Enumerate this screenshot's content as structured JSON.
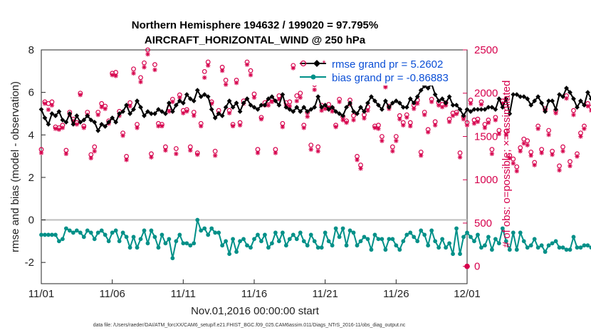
{
  "chart_data": {
    "type": "line",
    "title": "Northern Hemisphere 194632 / 199020 = 97.795%",
    "subtitle": "AIRCRAFT_HORIZONTAL_WIND @ 250 hPa",
    "xlabel": "Nov.01,2016 00:00:00 start",
    "ylabel": "rmse and bias (model - observation)",
    "ylabel_right": "# of obs: o=possible; ×=assimilated",
    "xlim": [
      0,
      30
    ],
    "ylim": [
      -3,
      8
    ],
    "ylim_right": [
      -200,
      2500
    ],
    "x_ticks": [
      0,
      5,
      10,
      15,
      20,
      25,
      30
    ],
    "x_tick_labels": [
      "11/01",
      "11/06",
      "11/11",
      "11/16",
      "11/21",
      "11/26",
      "12/01"
    ],
    "y_ticks": [
      -2,
      0,
      2,
      4,
      6,
      8
    ],
    "y_tick_labels": [
      "-2",
      "0",
      "2",
      "4",
      "6",
      "8"
    ],
    "y_right_ticks": [
      0,
      500,
      1000,
      1500,
      2000,
      2500
    ],
    "y_right_tick_labels": [
      "0",
      "500",
      "1000",
      "1500",
      "2000",
      "2500"
    ],
    "x_step_days": 0.25,
    "series": [
      {
        "name": "rmse grand pr = 5.2602",
        "axis": "left",
        "color": "#000000",
        "marker": "diamond",
        "values": [
          5.2,
          4.8,
          4.5,
          5.0,
          4.9,
          5.1,
          4.7,
          4.6,
          5.0,
          4.5,
          4.9,
          4.6,
          4.7,
          4.9,
          4.7,
          4.6,
          4.2,
          4.5,
          4.4,
          4.6,
          4.8,
          4.6,
          5.0,
          5.1,
          5.4,
          5.0,
          5.2,
          5.6,
          5.3,
          4.9,
          5.1,
          5.0,
          5.0,
          5.2,
          5.1,
          5.0,
          5.5,
          5.1,
          5.4,
          5.6,
          5.5,
          5.9,
          5.7,
          5.6,
          6.1,
          5.8,
          5.9,
          5.8,
          5.2,
          4.8,
          5.0,
          4.9,
          5.3,
          5.6,
          5.3,
          5.5,
          5.1,
          5.5,
          5.7,
          5.4,
          5.3,
          5.2,
          5.4,
          5.4,
          5.7,
          5.8,
          5.6,
          5.4,
          5.9,
          5.3,
          5.2,
          5.1,
          5.3,
          5.1,
          5.3,
          5.1,
          5.2,
          5.3,
          5.8,
          5.3,
          5.4,
          5.2,
          5.3,
          5.1,
          5.0,
          4.9,
          5.3,
          5.5,
          5.1,
          5.0,
          5.3,
          5.1,
          5.5,
          5.8,
          5.6,
          5.4,
          5.2,
          5.6,
          5.3,
          5.5,
          5.6,
          5.5,
          5.3,
          5.3,
          5.7,
          5.5,
          5.8,
          6.1,
          6.3,
          6.2,
          6.4,
          5.9,
          5.6,
          5.7,
          5.5,
          5.8,
          5.4,
          5.4,
          5.2,
          4.9,
          5.2,
          5.1,
          5.2,
          5.2,
          5.2,
          5.2,
          5.3,
          5.3,
          5.2,
          5.7,
          5.3,
          5.7,
          5.0,
          5.9,
          5.9,
          5.8,
          5.8,
          5.7,
          5.4,
          5.6,
          5.8,
          5.5,
          5.1,
          5.6,
          5.6,
          5.2,
          5.9,
          5.8,
          6.2,
          6.0,
          5.7,
          5.3,
          5.6,
          5.4,
          6.0,
          5.7,
          5.4,
          5.6,
          5.6,
          5.4,
          5.2,
          5.3,
          5.0,
          5.2,
          5.5,
          6.1,
          5.7,
          5.6,
          5.5,
          5.2
        ]
      },
      {
        "name": "bias grand pr = -0.86883",
        "axis": "left",
        "color": "#009088",
        "marker": "dot",
        "values": [
          -0.7,
          -0.7,
          -0.7,
          -0.7,
          -0.7,
          -1.0,
          -0.9,
          -0.4,
          -0.5,
          -0.6,
          -0.5,
          -0.6,
          -0.8,
          -0.5,
          -0.6,
          -0.9,
          -0.6,
          -0.5,
          -0.7,
          -1.0,
          -0.6,
          -0.5,
          -1.0,
          -0.6,
          -0.8,
          -1.3,
          -0.8,
          -1.3,
          -0.9,
          -0.5,
          -1.1,
          -0.5,
          -0.8,
          -1.3,
          -0.7,
          -1.1,
          -0.9,
          -1.8,
          -1.0,
          -0.7,
          -1.1,
          -1.1,
          -1.2,
          -1.1,
          -0.0,
          -0.5,
          -0.4,
          -0.7,
          -0.4,
          -0.6,
          -0.6,
          -1.2,
          -1.0,
          -1.6,
          -0.9,
          -1.5,
          -1.0,
          -0.9,
          -1.2,
          -1.3,
          -0.9,
          -0.7,
          -1.0,
          -0.7,
          -1.3,
          -1.1,
          -0.6,
          -1.0,
          -0.6,
          -1.2,
          -0.9,
          -0.7,
          -0.9,
          -0.6,
          -1.0,
          -1.2,
          -0.7,
          -1.0,
          -1.3,
          -1.3,
          -0.6,
          -1.0,
          -1.2,
          -0.4,
          -0.8,
          -0.4,
          -1.2,
          -0.5,
          -0.6,
          -1.2,
          -1.0,
          -0.8,
          -0.9,
          -1.4,
          -0.7,
          -0.9,
          -0.9,
          -1.4,
          -0.9,
          -0.9,
          -1.2,
          -1.4,
          -1.0,
          -0.7,
          -0.6,
          -0.8,
          -1.0,
          -0.5,
          -0.7,
          -1.2,
          -0.5,
          -1.0,
          -1.3,
          -0.9,
          -1.3,
          -1.1,
          -1.6,
          -0.4,
          -1.6,
          -0.8,
          -0.6,
          -0.8,
          -1.0,
          -0.7,
          -1.3,
          -1.2,
          -0.8,
          -1.4,
          -0.9,
          -1.1,
          -0.4,
          -1.0,
          -1.4,
          -0.6,
          -1.4,
          -0.6,
          -1.0,
          -1.3,
          -1.2,
          -0.9,
          -1.3,
          -1.2,
          -1.5,
          -1.2,
          -1.1,
          -1.0,
          -1.3,
          -1.3,
          -1.4,
          -1.4,
          -0.8,
          -1.3,
          -1.3,
          -1.2,
          -1.2,
          -1.3,
          -1.3,
          -1.4,
          -1.0,
          -1.2,
          -1.2,
          -1.7,
          -1.4,
          -1.3,
          -1.5,
          -1.1,
          -1.4,
          -1.7,
          -1.8,
          -1.4
        ]
      },
      {
        "name": "possible",
        "axis": "right",
        "color": "#d6004c",
        "marker": "circle",
        "values": [
          1350,
          1900,
          1880,
          1900,
          1610,
          1600,
          1630,
          1340,
          1780,
          1700,
          1660,
          2000,
          1620,
          1780,
          1290,
          1380,
          1780,
          1880,
          1850,
          1680,
          2230,
          2240,
          1790,
          1540,
          1270,
          1890,
          2280,
          1640,
          2180,
          2350,
          2500,
          1300,
          2330,
          1650,
          1640,
          1380,
          1830,
          1930,
          1360,
          1980,
          1800,
          1810,
          1380,
          1780,
          1310,
          1650,
          2250,
          2360,
          1900,
          1330,
          1800,
          2300,
          2150,
          1800,
          1640,
          2150,
          1660,
          1910,
          2360,
          2260,
          1990,
          1350,
          1720,
          1890,
          1910,
          1940,
          1350,
          1970,
          1650,
          1890,
          1900,
          2320,
          1970,
          2000,
          1630,
          1780,
          1400,
          2100,
          1380,
          1860,
          1850,
          1870,
          1830,
          1630,
          1930,
          1730,
          1680,
          1920,
          1740,
          1270,
          1170,
          1750,
          1840,
          2200,
          1620,
          1630,
          1500,
          2100,
          1850,
          1380,
          1500,
          1740,
          1660,
          1750,
          1660,
          1860,
          1920,
          1320,
          1780,
          1580,
          1930,
          1670,
          1890,
          1870,
          1890,
          1700,
          1770,
          1780,
          1310,
          1730,
          1660,
          1920,
          1690,
          1700,
          1900,
          1640,
          1690,
          1350,
          1720,
          1570,
          1910,
          1560,
          1280,
          1240,
          1150,
          1370,
          1470,
          1450,
          1320,
          1200,
          1620,
          1350,
          1820,
          1570,
          1330,
          1800,
          1160,
          1380,
          1970,
          1210,
          1800,
          1300,
          1540,
          1620,
          1880,
          1840,
          1590,
          2000,
          1950,
          1580,
          1340,
          1850,
          1780,
          1680,
          1820,
          1310,
          1240,
          1640,
          1680,
          1350
        ]
      },
      {
        "name": "assimilated",
        "axis": "right",
        "color": "#d6004c",
        "marker": "star",
        "values": [
          1310,
          1880,
          1810,
          1860,
          1590,
          1580,
          1600,
          1300,
          1750,
          1680,
          1640,
          1980,
          1600,
          1750,
          1250,
          1330,
          1750,
          1840,
          1820,
          1650,
          2210,
          2200,
          1740,
          1510,
          1230,
          1850,
          2230,
          1600,
          2130,
          2300,
          2450,
          1260,
          2270,
          1620,
          1620,
          1340,
          1790,
          1900,
          1300,
          1950,
          1770,
          1790,
          1340,
          1740,
          1290,
          1620,
          2180,
          2320,
          1880,
          1280,
          1770,
          2260,
          2100,
          1770,
          1620,
          2120,
          1630,
          1880,
          2330,
          2210,
          1950,
          1310,
          1700,
          1860,
          1860,
          1900,
          1310,
          1930,
          1610,
          1860,
          1850,
          2290,
          1910,
          1950,
          1600,
          1730,
          1350,
          2040,
          1330,
          1800,
          1820,
          1830,
          1790,
          1610,
          1900,
          1690,
          1660,
          1870,
          1690,
          1230,
          1130,
          1710,
          1800,
          2160,
          1600,
          1590,
          1450,
          2070,
          1820,
          1330,
          1450,
          1700,
          1630,
          1720,
          1620,
          1820,
          1880,
          1280,
          1750,
          1550,
          1900,
          1630,
          1860,
          1840,
          1860,
          1670,
          1740,
          1760,
          1260,
          1700,
          1630,
          1880,
          1650,
          1670,
          1870,
          1600,
          1660,
          1300,
          1690,
          1530,
          1880,
          1520,
          1250,
          1190,
          1100,
          1330,
          1420,
          1400,
          1280,
          1170,
          1590,
          1310,
          1800,
          1520,
          1290,
          1770,
          1110,
          1330,
          1940,
          1160,
          1750,
          1270,
          1500,
          1590,
          1850,
          1800,
          1560,
          1960,
          1920,
          1560,
          1310,
          1820,
          1740,
          1650,
          1790,
          1270,
          1200,
          1600,
          1650,
          1300
        ]
      }
    ],
    "extra_points": [
      {
        "series": "rmse grand pr = 5.2602",
        "x": 30,
        "value": 5.2
      }
    ],
    "zero_line": 0,
    "legend_position": "top-right"
  },
  "footer": "data file: /Users/raeder/DAI/ATM_forcXX/CAM6_setup/f.e21.FHIST_BGC.f09_025.CAM6assim.011/Diags_NTrS_2016-11/obs_diag_output.nc"
}
